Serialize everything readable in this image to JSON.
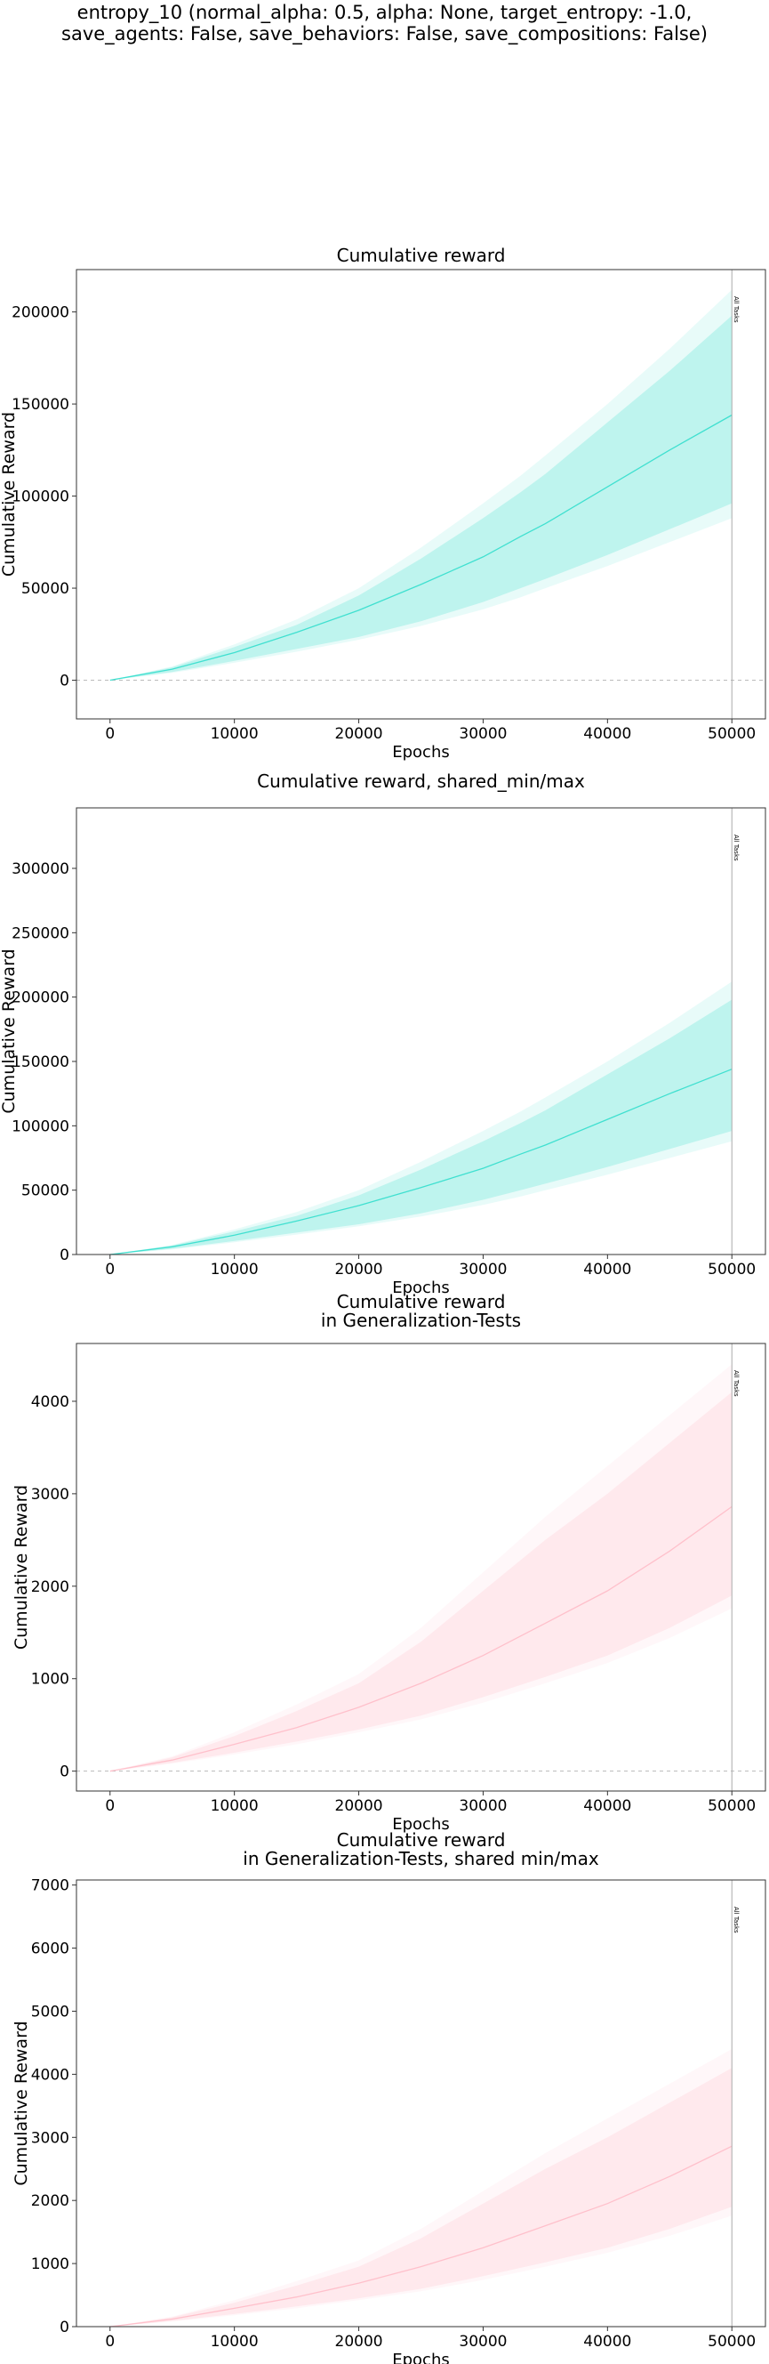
{
  "figure": {
    "suptitle_lines": [
      "entropy_10 (normal_alpha: 0.5, alpha: None, target_entropy: -1.0,",
      "save_agents: False, save_behaviors: False, save_compositions: False)"
    ]
  },
  "chart_data": [
    {
      "type": "line",
      "title_lines": [
        "Cumulative reward"
      ],
      "xlabel": "Epochs",
      "ylabel": "Cumulative Reward",
      "xlim": [
        -2700,
        52700
      ],
      "ylim": [
        -21000,
        223000
      ],
      "xticks": [
        0,
        10000,
        20000,
        30000,
        40000,
        50000
      ],
      "yticks": [
        0,
        50000,
        100000,
        150000,
        200000
      ],
      "color": "#40e0d0",
      "hline": 0,
      "vline": {
        "x": 50000,
        "label": "All Tasks"
      },
      "series": [
        {
          "x": [
            0,
            5000,
            10000,
            15000,
            20000,
            25000,
            30000,
            33000,
            35000,
            40000,
            45000,
            50000
          ],
          "mean": [
            0,
            6000,
            15000,
            26000,
            38000,
            52000,
            67000,
            78000,
            85000,
            105000,
            125000,
            144000
          ],
          "inner_low": [
            0,
            4500,
            10500,
            17000,
            23500,
            32000,
            42500,
            50000,
            55000,
            68000,
            82000,
            96000
          ],
          "inner_high": [
            0,
            7000,
            18000,
            30000,
            46000,
            66000,
            88000,
            102000,
            112000,
            140000,
            168000,
            198000
          ],
          "outer_low": [
            0,
            4000,
            9500,
            15500,
            22000,
            29500,
            38500,
            45000,
            50000,
            62000,
            75000,
            88000
          ],
          "outer_high": [
            0,
            7500,
            19500,
            33000,
            50000,
            72000,
            96000,
            111000,
            122000,
            150000,
            180000,
            212000
          ]
        }
      ]
    },
    {
      "type": "line",
      "title_lines": [
        "Cumulative reward, shared_min/max"
      ],
      "xlabel": "Epochs",
      "ylabel": "Cumulative Reward",
      "xlim": [
        -2700,
        52700
      ],
      "ylim": [
        0,
        347000
      ],
      "xticks": [
        0,
        10000,
        20000,
        30000,
        40000,
        50000
      ],
      "yticks": [
        0,
        50000,
        100000,
        150000,
        200000,
        250000,
        300000
      ],
      "color": "#40e0d0",
      "hline": null,
      "vline": {
        "x": 50000,
        "label": "All Tasks"
      },
      "series": [
        {
          "x": [
            0,
            5000,
            10000,
            15000,
            20000,
            25000,
            30000,
            33000,
            35000,
            40000,
            45000,
            50000
          ],
          "mean": [
            0,
            6000,
            15000,
            26000,
            38000,
            52000,
            67000,
            78000,
            85000,
            105000,
            125000,
            144000
          ],
          "inner_low": [
            0,
            4500,
            10500,
            17000,
            23500,
            32000,
            42500,
            50000,
            55000,
            68000,
            82000,
            96000
          ],
          "inner_high": [
            0,
            7000,
            18000,
            30000,
            46000,
            66000,
            88000,
            102000,
            112000,
            140000,
            168000,
            198000
          ],
          "outer_low": [
            0,
            4000,
            9500,
            15500,
            22000,
            29500,
            38500,
            45000,
            50000,
            62000,
            75000,
            88000
          ],
          "outer_high": [
            0,
            7500,
            19500,
            33000,
            50000,
            72000,
            96000,
            111000,
            122000,
            150000,
            180000,
            212000
          ]
        }
      ]
    },
    {
      "type": "line",
      "title_lines": [
        "Cumulative reward",
        "in Generalization-Tests"
      ],
      "xlabel": "Epochs",
      "ylabel": "Cumulative Reward",
      "xlim": [
        -2700,
        52700
      ],
      "ylim": [
        -215,
        4625
      ],
      "xticks": [
        0,
        10000,
        20000,
        30000,
        40000,
        50000
      ],
      "yticks": [
        0,
        1000,
        2000,
        3000,
        4000
      ],
      "color": "#ffc0cb",
      "hline": 0,
      "vline": {
        "x": 50000,
        "label": "All Tasks"
      },
      "series": [
        {
          "x": [
            0,
            5000,
            10000,
            15000,
            20000,
            25000,
            30000,
            35000,
            40000,
            45000,
            50000
          ],
          "mean": [
            0,
            120,
            290,
            470,
            690,
            950,
            1250,
            1600,
            1950,
            2380,
            2860
          ],
          "inner_low": [
            0,
            90,
            200,
            320,
            450,
            600,
            800,
            1020,
            1250,
            1550,
            1900
          ],
          "inner_high": [
            0,
            150,
            380,
            650,
            950,
            1400,
            1950,
            2500,
            3000,
            3550,
            4100
          ],
          "outer_low": [
            0,
            80,
            180,
            290,
            420,
            560,
            740,
            950,
            1170,
            1440,
            1760
          ],
          "outer_high": [
            0,
            160,
            420,
            720,
            1050,
            1550,
            2150,
            2750,
            3300,
            3850,
            4400
          ]
        }
      ]
    },
    {
      "type": "line",
      "title_lines": [
        "Cumulative reward",
        "in Generalization-Tests, shared min/max"
      ],
      "xlabel": "Epochs",
      "ylabel": "Cumulative Reward",
      "xlim": [
        -2700,
        52700
      ],
      "ylim": [
        0,
        7080
      ],
      "xticks": [
        0,
        10000,
        20000,
        30000,
        40000,
        50000
      ],
      "yticks": [
        0,
        1000,
        2000,
        3000,
        4000,
        5000,
        6000,
        7000
      ],
      "color": "#ffc0cb",
      "hline": null,
      "vline": {
        "x": 50000,
        "label": "All Tasks"
      },
      "series": [
        {
          "x": [
            0,
            5000,
            10000,
            15000,
            20000,
            25000,
            30000,
            35000,
            40000,
            45000,
            50000
          ],
          "mean": [
            0,
            120,
            290,
            470,
            690,
            950,
            1250,
            1600,
            1950,
            2380,
            2860
          ],
          "inner_low": [
            0,
            90,
            200,
            320,
            450,
            600,
            800,
            1020,
            1250,
            1550,
            1900
          ],
          "inner_high": [
            0,
            150,
            380,
            650,
            950,
            1400,
            1950,
            2500,
            3000,
            3550,
            4100
          ],
          "outer_low": [
            0,
            80,
            180,
            290,
            420,
            560,
            740,
            950,
            1170,
            1440,
            1760
          ],
          "outer_high": [
            0,
            160,
            420,
            720,
            1050,
            1550,
            2150,
            2750,
            3300,
            3850,
            4400
          ]
        }
      ]
    }
  ]
}
